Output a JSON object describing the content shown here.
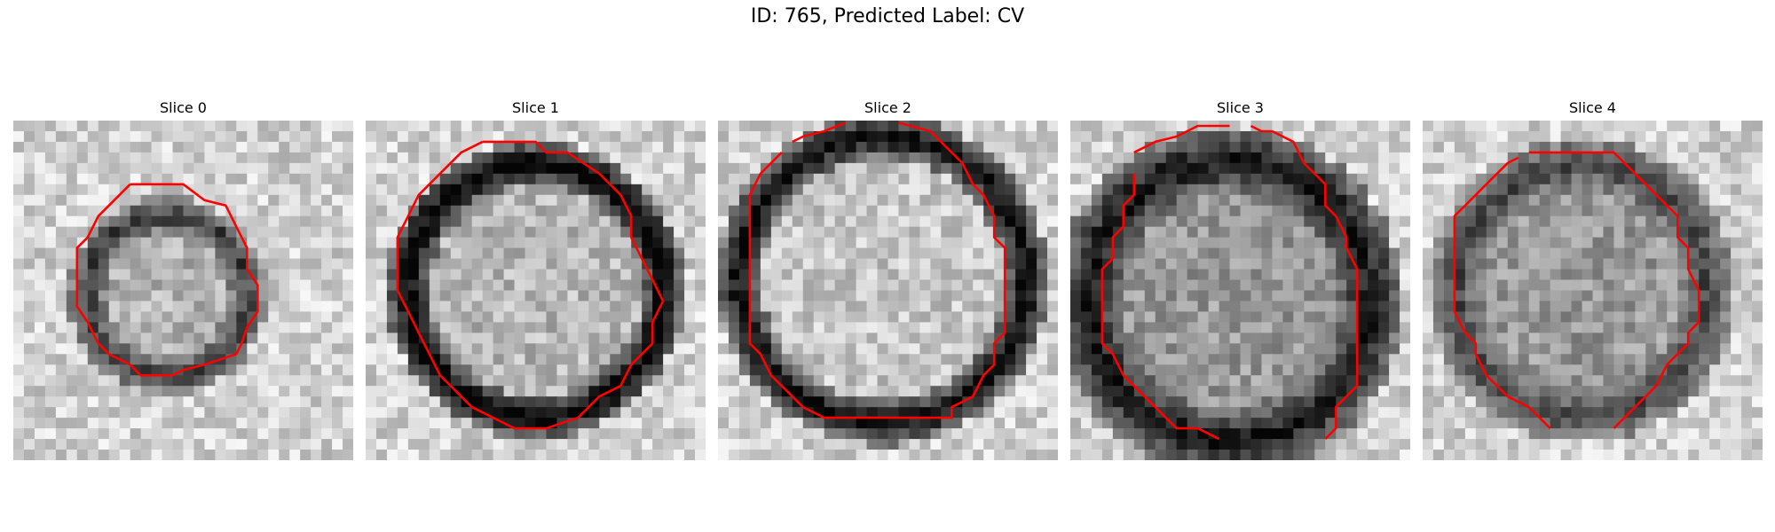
{
  "figure": {
    "title": "ID: 765, Predicted Label: CV"
  },
  "slices": [
    {
      "title": "Slice 0"
    },
    {
      "title": "Slice 1"
    },
    {
      "title": "Slice 2"
    },
    {
      "title": "Slice 3"
    },
    {
      "title": "Slice 4"
    }
  ],
  "colors": {
    "contour": "#ff0000",
    "background": "#ffffff"
  }
}
